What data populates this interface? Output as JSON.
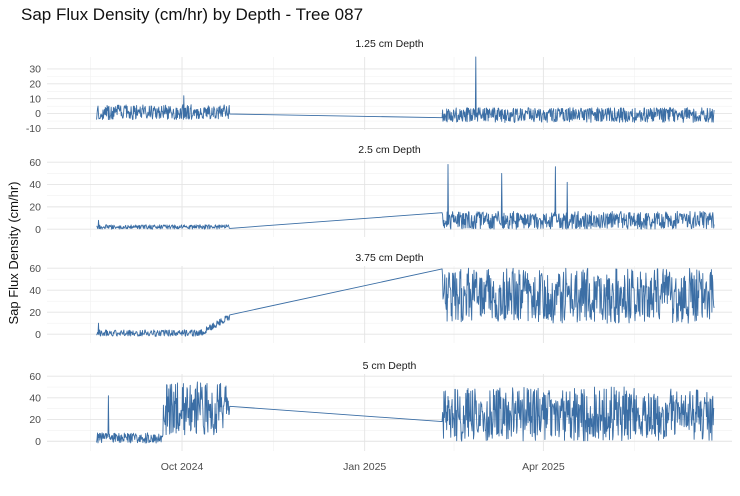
{
  "chart_data": {
    "type": "line",
    "title": "Sap Flux Density (cm/hr) by Depth - Tree 087",
    "ylabel": "Sap Flux Density (cm/hr)",
    "xlabel": "",
    "series_color": "#3b6ea5",
    "grid": true,
    "x_range": [
      "2024-07-25",
      "2025-07-05"
    ],
    "x_ticks": [
      {
        "date": "2024-10-01",
        "label": "Oct 2024"
      },
      {
        "date": "2025-01-01",
        "label": "Jan 2025"
      },
      {
        "date": "2025-04-01",
        "label": "Apr 2025"
      }
    ],
    "panels": [
      {
        "label": "1.25 cm Depth",
        "ylim": [
          -11,
          38
        ],
        "y_ticks": [
          -10,
          0,
          10,
          20,
          30
        ],
        "segments": [
          {
            "start": "2024-08-19",
            "end": "2024-10-25",
            "center": 1,
            "amp": 5,
            "spikes": [
              {
                "date": "2024-10-02",
                "value": 12
              }
            ]
          },
          {
            "start": "2025-02-09",
            "end": "2025-06-26",
            "center": -1,
            "amp": 5,
            "spikes": [
              {
                "date": "2025-02-26",
                "value": 38
              }
            ]
          }
        ]
      },
      {
        "label": "2.5 cm Depth",
        "ylim": [
          -7,
          62
        ],
        "y_ticks": [
          0,
          20,
          40,
          60
        ],
        "segments": [
          {
            "start": "2024-08-19",
            "end": "2024-10-25",
            "center": 2,
            "amp": 2,
            "spikes": [
              {
                "date": "2024-08-20",
                "value": 8
              }
            ]
          },
          {
            "start": "2025-02-09",
            "end": "2025-06-26",
            "center": 8,
            "amp": 8,
            "spikes": [
              {
                "date": "2025-02-12",
                "value": 58
              },
              {
                "date": "2025-03-11",
                "value": 50
              },
              {
                "date": "2025-04-07",
                "value": 56
              },
              {
                "date": "2025-04-13",
                "value": 42
              }
            ]
          }
        ]
      },
      {
        "label": "3.75 cm Depth",
        "ylim": [
          -8,
          62
        ],
        "y_ticks": [
          0,
          20,
          40,
          60
        ],
        "segments": [
          {
            "start": "2024-08-19",
            "end": "2024-10-25",
            "center": 1,
            "amp": 3,
            "ramp_end": 16,
            "spikes": [
              {
                "date": "2024-08-20",
                "value": 10
              }
            ]
          },
          {
            "start": "2025-02-09",
            "end": "2025-06-26",
            "center": 35,
            "amp": 25,
            "spikes": []
          }
        ]
      },
      {
        "label": "5 cm Depth",
        "ylim": [
          -9,
          62
        ],
        "y_ticks": [
          0,
          20,
          40,
          60
        ],
        "segments": [
          {
            "start": "2024-08-19",
            "end": "2024-10-25",
            "center": 3,
            "amp": 5,
            "late_center": 30,
            "late_amp": 25,
            "spikes": [
              {
                "date": "2024-08-25",
                "value": 42
              }
            ]
          },
          {
            "start": "2025-02-09",
            "end": "2025-06-26",
            "center": 25,
            "amp": 25,
            "spikes": []
          }
        ]
      }
    ]
  }
}
